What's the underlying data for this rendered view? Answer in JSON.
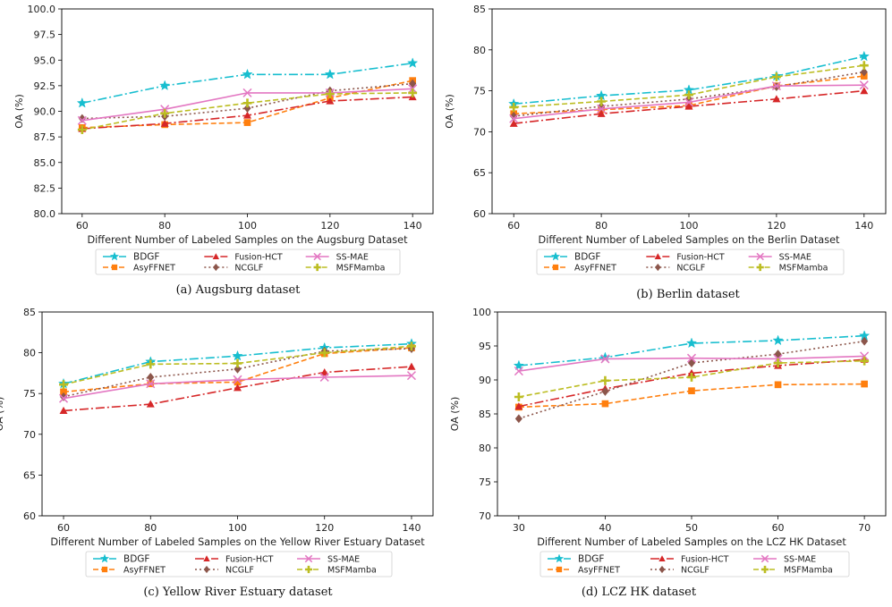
{
  "chart_data": [
    {
      "type": "line",
      "title": "",
      "caption": "(a) Augsburg dataset",
      "xlabel": "Different Number of Labeled Samples on the Augsburg Dataset",
      "ylabel": "OA (%)",
      "x": [
        60,
        80,
        100,
        120,
        140
      ],
      "xticks": [
        "60",
        "80",
        "100",
        "120",
        "140"
      ],
      "ylim": [
        80,
        100
      ],
      "yticks": [
        "80.0",
        "82.5",
        "85.0",
        "87.5",
        "90.0",
        "92.5",
        "95.0",
        "97.5",
        "100.0"
      ],
      "series": [
        {
          "name": "BDGF",
          "values": [
            90.8,
            92.5,
            93.6,
            93.6,
            94.7
          ]
        },
        {
          "name": "AsyFFNET",
          "values": [
            88.4,
            88.7,
            88.9,
            91.3,
            93.0
          ]
        },
        {
          "name": "Fusion-HCT",
          "values": [
            88.3,
            88.8,
            89.6,
            91.0,
            91.4
          ]
        },
        {
          "name": "NCGLF",
          "values": [
            89.3,
            89.5,
            90.3,
            92.0,
            92.7
          ]
        },
        {
          "name": "SS-MAE",
          "values": [
            89.1,
            90.2,
            91.8,
            91.8,
            92.2
          ]
        },
        {
          "name": "MSFMamba",
          "values": [
            88.2,
            89.8,
            90.8,
            91.7,
            91.8
          ]
        }
      ]
    },
    {
      "type": "line",
      "title": "",
      "caption": "(b) Berlin dataset",
      "xlabel": "Different Number of Labeled Samples on the Berlin Dataset",
      "ylabel": "OA (%)",
      "x": [
        60,
        80,
        100,
        120,
        140
      ],
      "xticks": [
        "60",
        "80",
        "100",
        "120",
        "140"
      ],
      "ylim": [
        60,
        85
      ],
      "yticks": [
        "60",
        "65",
        "70",
        "75",
        "80",
        "85"
      ],
      "series": [
        {
          "name": "BDGF",
          "values": [
            73.4,
            74.4,
            75.1,
            76.8,
            79.2
          ]
        },
        {
          "name": "AsyFFNET",
          "values": [
            72.2,
            72.7,
            73.2,
            75.6,
            76.8
          ]
        },
        {
          "name": "Fusion-HCT",
          "values": [
            71.0,
            72.2,
            73.1,
            74.0,
            75.0
          ]
        },
        {
          "name": "NCGLF",
          "values": [
            71.9,
            73.1,
            74.0,
            75.5,
            77.3
          ]
        },
        {
          "name": "SS-MAE",
          "values": [
            71.6,
            72.8,
            73.6,
            75.6,
            75.7
          ]
        },
        {
          "name": "MSFMamba",
          "values": [
            73.0,
            73.7,
            74.5,
            76.7,
            78.1
          ]
        }
      ]
    },
    {
      "type": "line",
      "title": "",
      "caption": "(c) Yellow River Estuary dataset",
      "xlabel": "Different Number of Labeled Samples on the Yellow River Estuary Dataset",
      "ylabel": "OA (%)",
      "x": [
        60,
        80,
        100,
        120,
        140
      ],
      "xticks": [
        "60",
        "80",
        "100",
        "120",
        "140"
      ],
      "ylim": [
        60,
        85
      ],
      "yticks": [
        "60",
        "65",
        "70",
        "75",
        "80",
        "85"
      ],
      "series": [
        {
          "name": "BDGF",
          "values": [
            76.2,
            78.9,
            79.6,
            80.6,
            81.1
          ]
        },
        {
          "name": "AsyFFNET",
          "values": [
            75.2,
            76.2,
            76.4,
            79.9,
            80.6
          ]
        },
        {
          "name": "Fusion-HCT",
          "values": [
            72.9,
            73.7,
            75.7,
            77.6,
            78.3
          ]
        },
        {
          "name": "NCGLF",
          "values": [
            74.6,
            77.0,
            78.0,
            80.2,
            80.5
          ]
        },
        {
          "name": "SS-MAE",
          "values": [
            74.4,
            76.2,
            76.7,
            77.0,
            77.2
          ]
        },
        {
          "name": "MSFMamba",
          "values": [
            76.1,
            78.6,
            78.7,
            80.0,
            80.8
          ]
        }
      ]
    },
    {
      "type": "line",
      "title": "",
      "caption": "(d) LCZ HK dataset",
      "xlabel": "Different Number of Labeled Samples on the LCZ HK Dataset",
      "ylabel": "OA (%)",
      "x": [
        30,
        40,
        50,
        60,
        70
      ],
      "xticks": [
        "30",
        "40",
        "50",
        "60",
        "70"
      ],
      "ylim": [
        70,
        100
      ],
      "yticks": [
        "70",
        "75",
        "80",
        "85",
        "90",
        "95",
        "100"
      ],
      "series": [
        {
          "name": "BDGF",
          "values": [
            92.1,
            93.3,
            95.4,
            95.8,
            96.5
          ]
        },
        {
          "name": "AsyFFNET",
          "values": [
            86.0,
            86.5,
            88.4,
            89.3,
            89.4
          ]
        },
        {
          "name": "Fusion-HCT",
          "values": [
            86.1,
            88.7,
            91.0,
            92.1,
            93.0
          ]
        },
        {
          "name": "NCGLF",
          "values": [
            84.3,
            88.3,
            92.5,
            93.8,
            95.7
          ]
        },
        {
          "name": "SS-MAE",
          "values": [
            91.3,
            93.1,
            93.2,
            93.1,
            93.5
          ]
        },
        {
          "name": "MSFMamba",
          "values": [
            87.5,
            89.9,
            90.4,
            92.5,
            92.8
          ]
        }
      ]
    }
  ],
  "styles": [
    {
      "name": "BDGF",
      "color": "#17becf",
      "marker": "star",
      "dash": "10,3,2,3",
      "legendFont": "serif"
    },
    {
      "name": "AsyFFNET",
      "color": "#ff7f0e",
      "marker": "square",
      "dash": "6,3",
      "legendFont": "sans"
    },
    {
      "name": "Fusion-HCT",
      "color": "#d62728",
      "marker": "triangle",
      "dash": "10,3,2,3",
      "legendFont": "sans"
    },
    {
      "name": "NCGLF",
      "color": "#8c564b",
      "marker": "diamond",
      "dash": "2,3",
      "legendFont": "sans"
    },
    {
      "name": "SS-MAE",
      "color": "#e377c2",
      "marker": "x",
      "dash": "",
      "legendFont": "sans"
    },
    {
      "name": "MSFMamba",
      "color": "#bcbd22",
      "marker": "plus",
      "dash": "6,3",
      "legendFont": "sans"
    }
  ]
}
